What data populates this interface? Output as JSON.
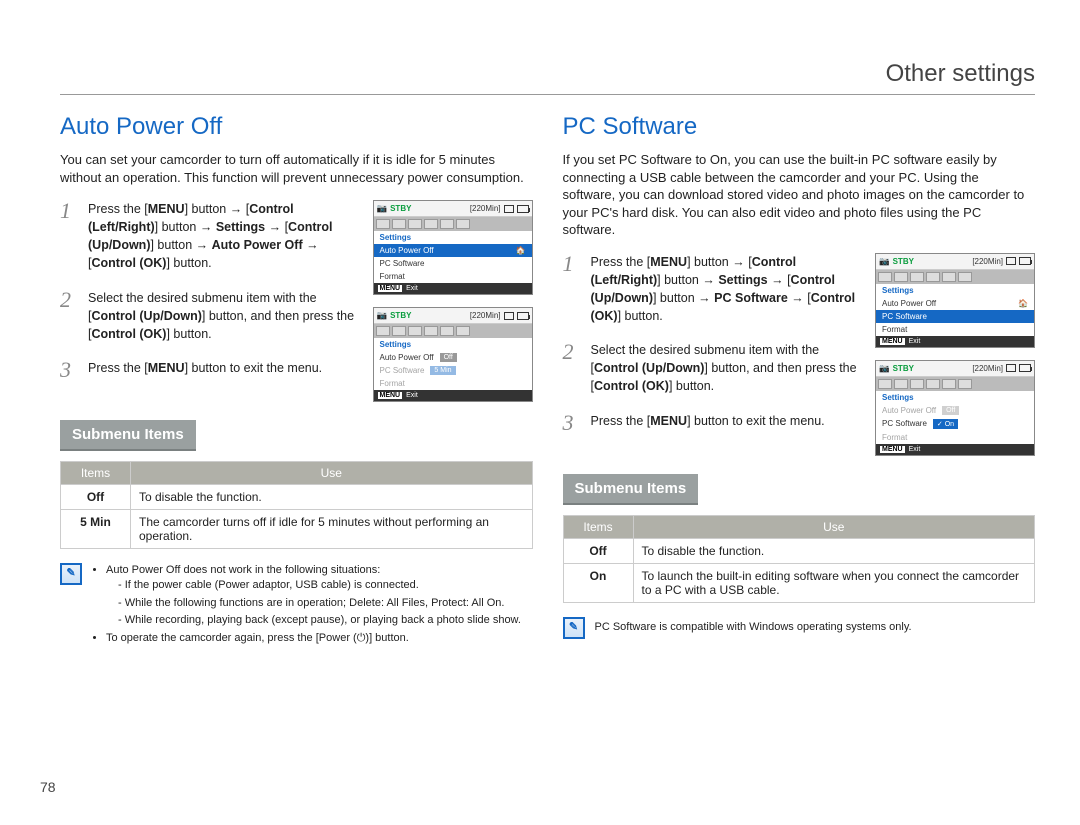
{
  "page_title": "Other settings",
  "page_number": "78",
  "colors": {
    "accent": "#1568c4",
    "grey_header": "#b0b0a8",
    "submenu_bg": "#9aa0a0",
    "text": "#222222"
  },
  "left": {
    "heading": "Auto Power Off",
    "intro": "You can set your camcorder to turn off automatically if it is idle for 5 minutes without an operation. This function will prevent unnecessary power consumption.",
    "steps": [
      "Press the [**MENU**] button → [**Control (Left/Right)**] button → **Settings** → [**Control (Up/Down)**] button → **Auto Power Off** → [**Control (OK)**] button.",
      "Select the desired submenu item with the [**Control (Up/Down)**] button, and then press the [**Control (OK)**] button.",
      "Press the [**MENU**] button to exit the menu."
    ],
    "submenu_label": "Submenu Items",
    "table": {
      "headers": [
        "Items",
        "Use"
      ],
      "rows": [
        [
          "Off",
          "To disable the function."
        ],
        [
          "5 Min",
          "The camcorder turns off if idle for 5 minutes without performing an operation."
        ]
      ]
    },
    "note": [
      "Auto Power Off does not work in the following situations:",
      "If the power cable (Power adaptor, USB cable) is connected.",
      "While the following functions are in operation; **Delete: All Files**, **Protect: All On**.",
      "While recording, playing back (except pause), or playing back a photo slide show.",
      "To operate the camcorder again, press the [**Power** (⏻)] button."
    ],
    "shots": [
      {
        "stby": "STBY",
        "time": "[220Min]",
        "header": "Settings",
        "rows": [
          {
            "label": "Auto Power Off",
            "sel": true,
            "icon": "🏠"
          },
          {
            "label": "PC Software"
          },
          {
            "label": "Format"
          }
        ],
        "exit": "Exit"
      },
      {
        "stby": "STBY",
        "time": "[220Min]",
        "header": "Settings",
        "rows": [
          {
            "label": "Auto Power Off",
            "val": "Off"
          },
          {
            "label": "PC Software",
            "dim": true,
            "val": "5 Min",
            "valsel": true
          },
          {
            "label": "Format",
            "dim": true
          }
        ],
        "exit": "Exit"
      }
    ]
  },
  "right": {
    "heading": "PC Software",
    "intro": "If you set PC Software to On, you can use the built-in PC software easily by connecting a USB cable between the camcorder and your PC. Using the software, you can download stored video and photo images on the camcorder to your PC's hard disk. You can also edit video and photo files using the PC software.",
    "steps": [
      "Press the [**MENU**] button → [**Control (Left/Right)**] button → **Settings** → [**Control (Up/Down)**] button → **PC Software** → [**Control (OK)**] button.",
      "Select the desired submenu item with the [**Control (Up/Down)**] button, and then press the [**Control (OK)**] button.",
      "Press the [**MENU**] button to exit the menu."
    ],
    "submenu_label": "Submenu Items",
    "table": {
      "headers": [
        "Items",
        "Use"
      ],
      "rows": [
        [
          "Off",
          "To disable the function."
        ],
        [
          "On",
          "To launch the built-in editing software when you connect the camcorder to a PC with a USB cable."
        ]
      ]
    },
    "note_text": "PC Software is compatible with Windows operating systems only.",
    "shots": [
      {
        "stby": "STBY",
        "time": "[220Min]",
        "header": "Settings",
        "rows": [
          {
            "label": "Auto Power Off",
            "icon": "🏠"
          },
          {
            "label": "PC Software",
            "sel": true
          },
          {
            "label": "Format"
          }
        ],
        "exit": "Exit"
      },
      {
        "stby": "STBY",
        "time": "[220Min]",
        "header": "Settings",
        "rows": [
          {
            "label": "Auto Power Off",
            "dim": true,
            "val": "Off"
          },
          {
            "label": "PC Software",
            "val": "On",
            "valsel": true,
            "valicon": "✓"
          },
          {
            "label": "Format",
            "dim": true
          }
        ],
        "exit": "Exit"
      }
    ]
  }
}
